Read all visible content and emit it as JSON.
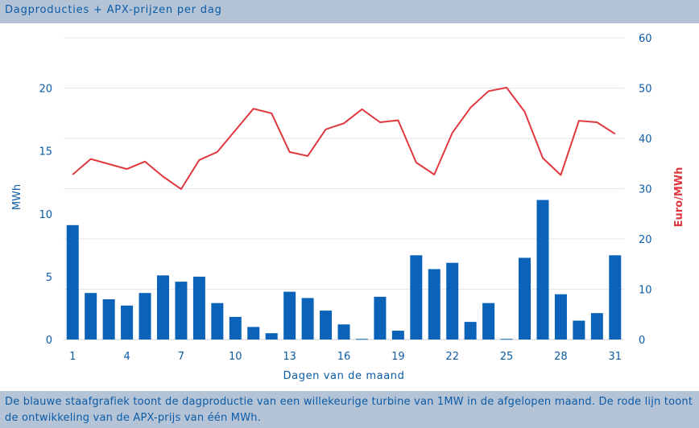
{
  "title": "Dagproducties + APX-prijzen per dag",
  "caption": "De blauwe staafgrafiek toont de dagproductie van een willekeurige turbine van 1MW in de afgelopen maand. De rode lijn toont de ontwikkeling van de APX-prijs van één MWh.",
  "colors": {
    "background": "#ffffff",
    "header": "#b4c3d5",
    "bars": "#0a63b8",
    "line": "#e0383e",
    "axis_text": "#0b5ca8",
    "grid": "#e6e6e6"
  },
  "chart_data": {
    "type": "bar+line",
    "xlabel": "Dagen van de maand",
    "ylabel_left": "MWh",
    "ylabel_right": "Euro/MWh",
    "ylim_left": [
      0,
      24
    ],
    "ylim_right": [
      0,
      60
    ],
    "xticks": [
      1,
      4,
      7,
      10,
      13,
      16,
      19,
      22,
      25,
      28,
      31
    ],
    "yticks_left": [
      0,
      5,
      10,
      15,
      20
    ],
    "yticks_right": [
      0,
      10,
      20,
      30,
      40,
      50,
      60
    ],
    "grid": true,
    "legend": "none",
    "days": [
      1,
      2,
      3,
      4,
      5,
      6,
      7,
      8,
      9,
      10,
      11,
      12,
      13,
      14,
      15,
      16,
      17,
      18,
      19,
      20,
      21,
      22,
      23,
      24,
      25,
      26,
      27,
      28,
      29,
      30,
      31
    ],
    "series": [
      {
        "type": "bar",
        "axis": "left",
        "values": [
          9.1,
          3.7,
          3.2,
          2.7,
          3.7,
          5.1,
          4.6,
          5.0,
          2.9,
          1.8,
          1.0,
          0.5,
          3.8,
          3.3,
          2.3,
          1.2,
          0.05,
          3.4,
          0.7,
          6.7,
          5.6,
          6.1,
          1.4,
          2.9,
          0.05,
          6.5,
          11.1,
          3.6,
          1.5,
          2.1,
          6.7
        ]
      },
      {
        "type": "line",
        "axis": "right",
        "values": [
          32.8,
          35.9,
          34.9,
          33.9,
          35.4,
          32.4,
          29.9,
          35.7,
          37.3,
          41.6,
          45.9,
          45.0,
          37.3,
          36.5,
          41.8,
          43.0,
          45.8,
          43.2,
          43.6,
          35.2,
          32.8,
          41.1,
          46.1,
          49.4,
          50.1,
          45.3,
          36.1,
          32.7,
          43.5,
          43.2,
          40.9
        ]
      }
    ]
  }
}
